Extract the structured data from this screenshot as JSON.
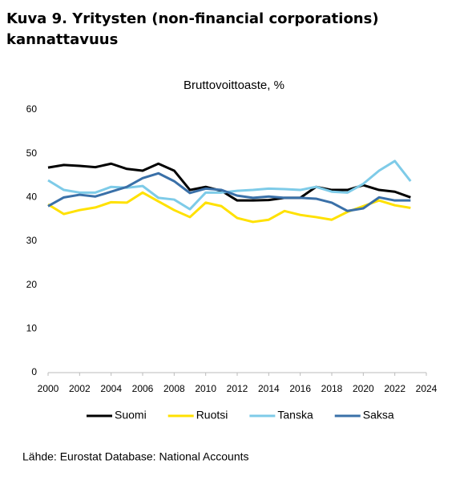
{
  "header": {
    "title_lines": [
      "Kuva 9. Yritysten (non-financial corporations)",
      "kannattavuus"
    ]
  },
  "chart_data": {
    "type": "line",
    "title": "Bruttovoittoaste, %",
    "x": [
      2000,
      2001,
      2002,
      2003,
      2004,
      2005,
      2006,
      2007,
      2008,
      2009,
      2010,
      2011,
      2012,
      2013,
      2014,
      2015,
      2016,
      2017,
      2018,
      2019,
      2020,
      2021,
      2022,
      2023
    ],
    "series": [
      {
        "name": "Suomi",
        "color": "#000000",
        "values": [
          46.8,
          47.4,
          47.2,
          46.9,
          47.7,
          46.5,
          46.1,
          47.7,
          46.1,
          41.7,
          42.4,
          41.5,
          39.3,
          39.3,
          39.4,
          39.9,
          39.9,
          42.4,
          41.7,
          41.7,
          42.8,
          41.7,
          41.3,
          40.0
        ]
      },
      {
        "name": "Ruotsi",
        "color": "#ffe100",
        "values": [
          38.4,
          36.2,
          37.1,
          37.7,
          38.9,
          38.8,
          41.1,
          39.1,
          37.1,
          35.5,
          38.8,
          38.0,
          35.3,
          34.4,
          34.9,
          36.9,
          36.0,
          35.5,
          34.9,
          36.7,
          38.0,
          39.3,
          38.2,
          37.6
        ]
      },
      {
        "name": "Tanska",
        "color": "#7ecbe8",
        "values": [
          43.9,
          41.7,
          41.1,
          41.1,
          42.4,
          42.2,
          42.6,
          39.9,
          39.5,
          37.3,
          41.1,
          41.1,
          41.5,
          41.7,
          42.0,
          41.9,
          41.7,
          42.4,
          41.3,
          41.1,
          43.1,
          46.1,
          48.3,
          43.7
        ]
      },
      {
        "name": "Saksa",
        "color": "#3a70a8",
        "values": [
          38.0,
          40.0,
          40.6,
          40.2,
          41.3,
          42.4,
          44.4,
          45.5,
          43.7,
          41.0,
          42.0,
          41.7,
          40.4,
          39.9,
          40.2,
          39.9,
          39.9,
          39.7,
          38.8,
          36.9,
          37.5,
          40.0,
          39.3,
          39.3
        ]
      }
    ],
    "xlim": [
      2000,
      2024
    ],
    "xticks": [
      2000,
      2002,
      2004,
      2006,
      2008,
      2010,
      2012,
      2014,
      2016,
      2018,
      2020,
      2022,
      2024
    ],
    "ylim": [
      0,
      60
    ],
    "yticks": [
      0,
      10,
      20,
      30,
      40,
      50,
      60
    ],
    "grid": false,
    "legend": "bottom",
    "source": "Lähde: Eurostat Database: National Accounts"
  }
}
